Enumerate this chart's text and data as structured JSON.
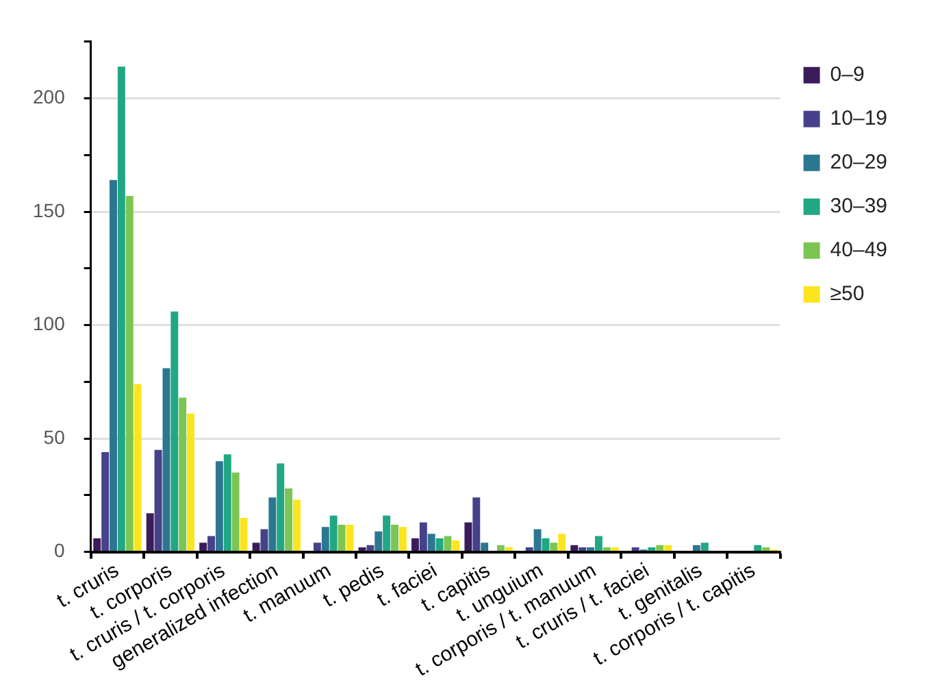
{
  "chart_data": {
    "type": "bar",
    "categories": [
      "t. cruris",
      "t. corporis",
      "t. cruris / t. corporis",
      "generalized infection",
      "t. manuum",
      "t. pedis",
      "t. faciei",
      "t. capitis",
      "t. unguium",
      "t. corporis / t. manuum",
      "t. cruris / t. faciei",
      "t. genitalis",
      "t. corporis / t. capitis"
    ],
    "series": [
      {
        "name": "0–9",
        "color": "#3b1c5a",
        "values": [
          6,
          17,
          4,
          4,
          0,
          2,
          6,
          13,
          0,
          3,
          0,
          0,
          0
        ]
      },
      {
        "name": "10–19",
        "color": "#46418a",
        "values": [
          44,
          45,
          7,
          10,
          4,
          3,
          13,
          24,
          2,
          2,
          2,
          0,
          0
        ]
      },
      {
        "name": "20–29",
        "color": "#2c7790",
        "values": [
          164,
          81,
          40,
          24,
          11,
          9,
          8,
          4,
          10,
          2,
          1,
          3,
          0
        ]
      },
      {
        "name": "30–39",
        "color": "#21a784",
        "values": [
          214,
          106,
          43,
          39,
          16,
          16,
          6,
          0,
          6,
          7,
          2,
          4,
          3
        ]
      },
      {
        "name": "40–49",
        "color": "#7cc553",
        "values": [
          157,
          68,
          35,
          28,
          12,
          12,
          7,
          3,
          4,
          2,
          3,
          0,
          2
        ]
      },
      {
        "name": "≥50",
        "color": "#fbe51f",
        "values": [
          74,
          61,
          15,
          23,
          12,
          11,
          5,
          2,
          8,
          2,
          3,
          0,
          1
        ]
      }
    ],
    "ylim": [
      0,
      225
    ],
    "yticks": [
      0,
      {
        "value": 25,
        "label": null
      },
      50,
      {
        "value": 75,
        "label": null
      },
      100,
      {
        "value": 125,
        "label": null
      },
      150,
      {
        "value": 175,
        "label": null
      },
      200,
      {
        "value": 225,
        "label": null
      }
    ],
    "grid": "y",
    "legend": "top right"
  }
}
